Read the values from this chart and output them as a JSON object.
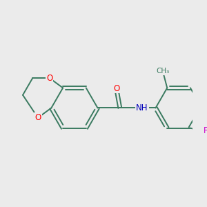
{
  "background_color": "#ebebeb",
  "bond_color": "#3a7a60",
  "atom_colors": {
    "O": "#ff0000",
    "N": "#0000bb",
    "F": "#cc00cc"
  },
  "lw": 1.4,
  "r": 0.52
}
